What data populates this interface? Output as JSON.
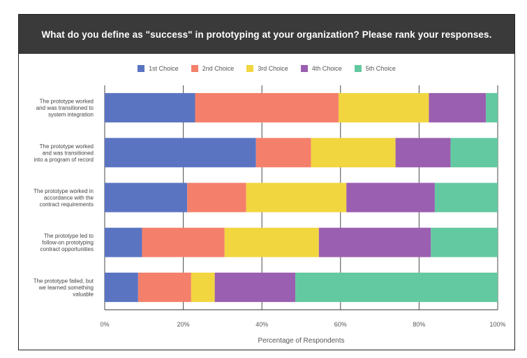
{
  "chart_data": {
    "type": "bar",
    "orientation": "horizontal",
    "stacked": true,
    "title": "What do you define as \"success\" in prototyping at your organization? Please rank your responses.",
    "xlabel": "Percentage of Respondents",
    "ylabel": "",
    "xlim": [
      0,
      100
    ],
    "xticks": [
      "0%",
      "20%",
      "40%",
      "60%",
      "80%",
      "100%"
    ],
    "categories": [
      [
        "The prototype worked",
        "and was transitioned to",
        "system integration"
      ],
      [
        "The prototype worked",
        "and was transitioned",
        "into a program of record"
      ],
      [
        "The prototype worked in",
        "accordance with the",
        "contract requirements"
      ],
      [
        "The prototype led to",
        "follow-on prototyping",
        "contract opportunities"
      ],
      [
        "The prototype failed, but",
        "we learned something",
        "valuable"
      ]
    ],
    "series": [
      {
        "name": "1st Choice",
        "color": "#5b74c2",
        "values": [
          23,
          38.5,
          21,
          9.5,
          8.5
        ]
      },
      {
        "name": "2nd Choice",
        "color": "#f4806b",
        "values": [
          36.5,
          14,
          15,
          21,
          13.5
        ]
      },
      {
        "name": "3rd Choice",
        "color": "#f2d640",
        "values": [
          23,
          21.5,
          25.5,
          24,
          6
        ]
      },
      {
        "name": "4th Choice",
        "color": "#9a5fb0",
        "values": [
          14.5,
          14,
          22.5,
          28.5,
          20.5
        ]
      },
      {
        "name": "5th Choice",
        "color": "#63c9a0",
        "values": [
          3,
          12,
          16,
          17,
          51.5
        ]
      }
    ],
    "grid": true,
    "legend_position": "top"
  }
}
